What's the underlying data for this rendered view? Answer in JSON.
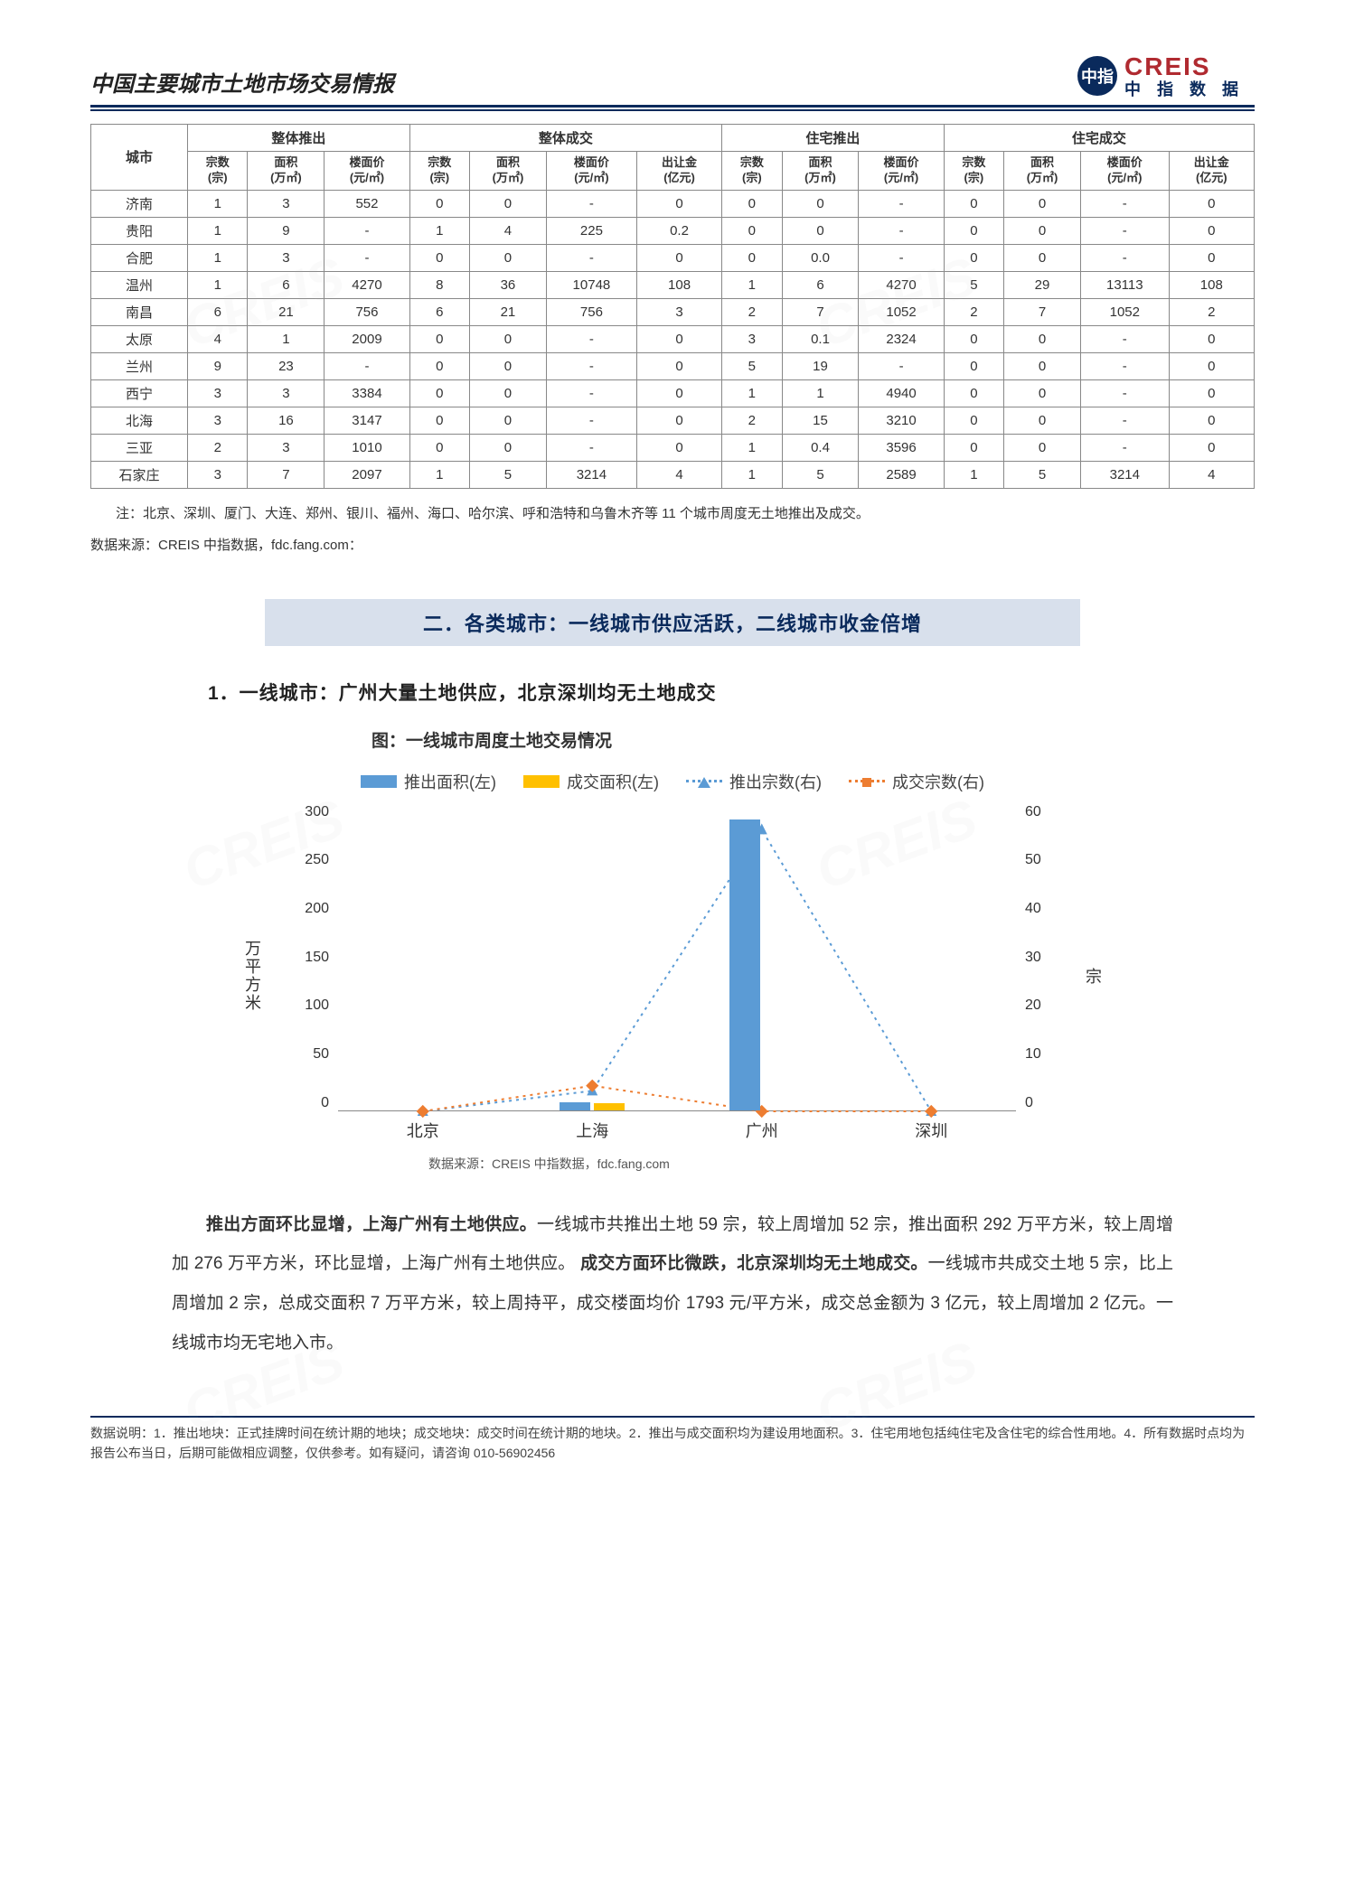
{
  "header": {
    "report_title": "中国主要城市土地市场交易情报",
    "logo_en": "CREIS",
    "logo_cn": "中指数据",
    "logo_badge": "中指"
  },
  "table": {
    "city_col": "城市",
    "groups": [
      "整体推出",
      "整体成交",
      "住宅推出",
      "住宅成交"
    ],
    "sub_cols": {
      "zong": "宗数\n(宗)",
      "mianji": "面积\n(万㎡)",
      "jia": "楼面价\n(元/㎡)",
      "jin": "出让金\n(亿元)"
    },
    "rows": [
      {
        "city": "济南",
        "c": [
          [
            "1",
            "3",
            "552"
          ],
          [
            "0",
            "0",
            "-",
            "0"
          ],
          [
            "0",
            "0",
            "-"
          ],
          [
            "0",
            "0",
            "-",
            "0"
          ]
        ]
      },
      {
        "city": "贵阳",
        "c": [
          [
            "1",
            "9",
            "-"
          ],
          [
            "1",
            "4",
            "225",
            "0.2"
          ],
          [
            "0",
            "0",
            "-"
          ],
          [
            "0",
            "0",
            "-",
            "0"
          ]
        ]
      },
      {
        "city": "合肥",
        "c": [
          [
            "1",
            "3",
            "-"
          ],
          [
            "0",
            "0",
            "-",
            "0"
          ],
          [
            "0",
            "0.0",
            "-"
          ],
          [
            "0",
            "0",
            "-",
            "0"
          ]
        ]
      },
      {
        "city": "温州",
        "c": [
          [
            "1",
            "6",
            "4270"
          ],
          [
            "8",
            "36",
            "10748",
            "108"
          ],
          [
            "1",
            "6",
            "4270"
          ],
          [
            "5",
            "29",
            "13113",
            "108"
          ]
        ]
      },
      {
        "city": "南昌",
        "c": [
          [
            "6",
            "21",
            "756"
          ],
          [
            "6",
            "21",
            "756",
            "3"
          ],
          [
            "2",
            "7",
            "1052"
          ],
          [
            "2",
            "7",
            "1052",
            "2"
          ]
        ]
      },
      {
        "city": "太原",
        "c": [
          [
            "4",
            "1",
            "2009"
          ],
          [
            "0",
            "0",
            "-",
            "0"
          ],
          [
            "3",
            "0.1",
            "2324"
          ],
          [
            "0",
            "0",
            "-",
            "0"
          ]
        ]
      },
      {
        "city": "兰州",
        "c": [
          [
            "9",
            "23",
            "-"
          ],
          [
            "0",
            "0",
            "-",
            "0"
          ],
          [
            "5",
            "19",
            "-"
          ],
          [
            "0",
            "0",
            "-",
            "0"
          ]
        ]
      },
      {
        "city": "西宁",
        "c": [
          [
            "3",
            "3",
            "3384"
          ],
          [
            "0",
            "0",
            "-",
            "0"
          ],
          [
            "1",
            "1",
            "4940"
          ],
          [
            "0",
            "0",
            "-",
            "0"
          ]
        ]
      },
      {
        "city": "北海",
        "c": [
          [
            "3",
            "16",
            "3147"
          ],
          [
            "0",
            "0",
            "-",
            "0"
          ],
          [
            "2",
            "15",
            "3210"
          ],
          [
            "0",
            "0",
            "-",
            "0"
          ]
        ]
      },
      {
        "city": "三亚",
        "c": [
          [
            "2",
            "3",
            "1010"
          ],
          [
            "0",
            "0",
            "-",
            "0"
          ],
          [
            "1",
            "0.4",
            "3596"
          ],
          [
            "0",
            "0",
            "-",
            "0"
          ]
        ]
      },
      {
        "city": "石家庄",
        "c": [
          [
            "3",
            "7",
            "2097"
          ],
          [
            "1",
            "5",
            "3214",
            "4"
          ],
          [
            "1",
            "5",
            "2589"
          ],
          [
            "1",
            "5",
            "3214",
            "4"
          ]
        ]
      }
    ],
    "note": "注：北京、深圳、厦门、大连、郑州、银川、福州、海口、哈尔滨、呼和浩特和乌鲁木齐等 11 个城市周度无土地推出及成交。",
    "source": "数据来源：CREIS 中指数据，fdc.fang.com："
  },
  "section": {
    "banner": "二．各类城市：一线城市供应活跃，二线城市收金倍增",
    "subtitle": "1．一线城市：广州大量土地供应，北京深圳均无土地成交",
    "chart_title": "图：一线城市周度土地交易情况"
  },
  "chart": {
    "legend": {
      "l1": "推出面积(左)",
      "l2": "成交面积(左)",
      "l3": "推出宗数(右)",
      "l4": "成交宗数(右)"
    },
    "y_left": {
      "label": "万平方米",
      "max": 300,
      "step": 50,
      "ticks": [
        "0",
        "50",
        "100",
        "150",
        "200",
        "250",
        "300"
      ]
    },
    "y_right": {
      "label": "宗",
      "max": 60,
      "step": 10,
      "ticks": [
        "0",
        "10",
        "20",
        "30",
        "40",
        "50",
        "60"
      ]
    },
    "categories": [
      "北京",
      "上海",
      "广州",
      "深圳"
    ],
    "series": {
      "tuichu_area": {
        "color": "#5b9bd5",
        "values": [
          0,
          8,
          284,
          0
        ]
      },
      "chengjiao_area": {
        "color": "#ffc000",
        "values": [
          0,
          7,
          0,
          0
        ]
      },
      "tuichu_zong": {
        "color": "#5b9bd5",
        "marker": "triangle",
        "values": [
          0,
          4,
          55,
          0
        ]
      },
      "chengjiao_zong": {
        "color": "#ed7d31",
        "marker": "diamond",
        "values": [
          0,
          5,
          0,
          0
        ]
      }
    },
    "source": "数据来源：CREIS 中指数据，fdc.fang.com",
    "background_color": "#ffffff"
  },
  "paragraphs": {
    "p1_bold": "推出方面环比显增，上海广州有土地供应。",
    "p1_rest": "一线城市共推出土地 59 宗，较上周增加 52 宗，推出面积 292 万平方米，较上周增加 276 万平方米，环比显增，上海广州有土地供应。",
    "p2_bold": "成交方面环比微跌，北京深圳均无土地成交。",
    "p2_rest": "一线城市共成交土地 5 宗，比上周增加 2 宗，总成交面积 7 万平方米，较上周持平，成交楼面均价 1793 元/平方米，成交总金额为 3 亿元，较上周增加 2 亿元。一线城市均无宅地入市。"
  },
  "footer": {
    "note": "数据说明：1．推出地块：正式挂牌时间在统计期的地块；成交地块：成交时间在统计期的地块。2．推出与成交面积均为建设用地面积。3．住宅用地包括纯住宅及含住宅的综合性用地。4．所有数据时点均为报告公布当日，后期可能做相应调整，仅供参考。如有疑问，请咨询 010-56902456"
  }
}
